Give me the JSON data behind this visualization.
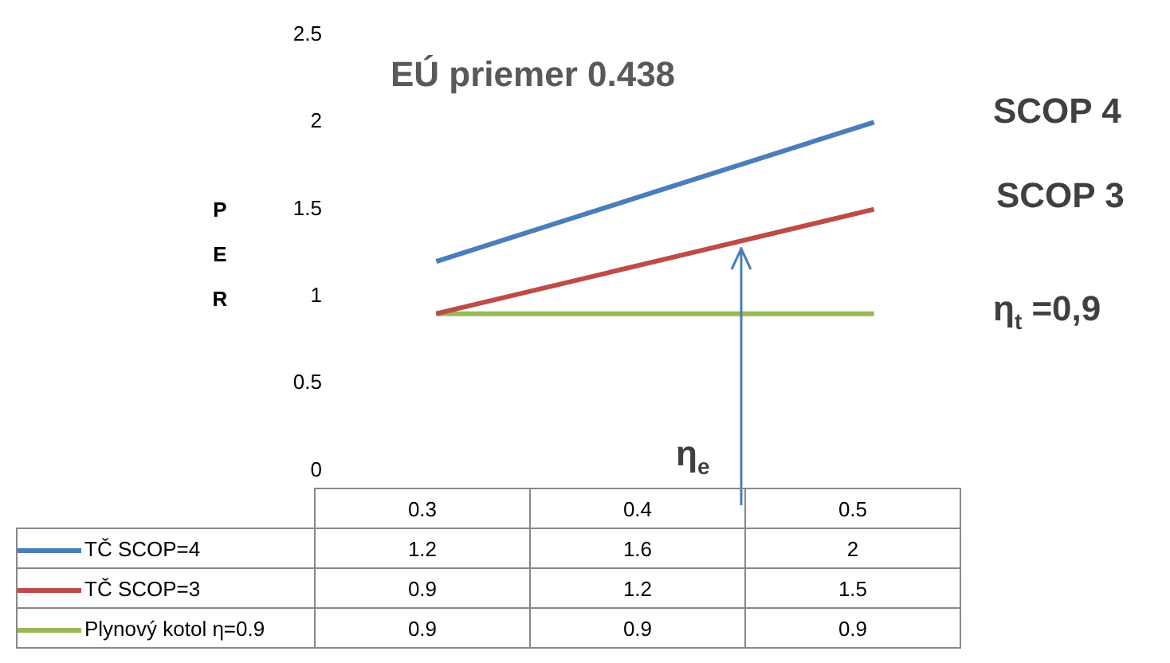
{
  "chart_data": {
    "type": "line",
    "ylabel": "PER",
    "categories": [
      "0.3",
      "0.4",
      "0.5"
    ],
    "series": [
      {
        "name": "TČ SCOP=4",
        "color": "#4a7ebb",
        "values": [
          1.2,
          1.6,
          2
        ]
      },
      {
        "name": "TČ SCOP=3",
        "color": "#be4b48",
        "values": [
          0.9,
          1.2,
          1.5
        ]
      },
      {
        "name": "Plynový kotol η=0.9",
        "color": "#98b954",
        "values": [
          0.9,
          0.9,
          0.9
        ]
      }
    ],
    "ylim": [
      0,
      2.5
    ],
    "yticks": [
      0,
      0.5,
      1,
      1.5,
      2,
      2.5
    ],
    "grid": false,
    "legend": "bottom",
    "data_labels": true,
    "marker": "none",
    "annotations": [
      "EÚ priemer 0.438",
      "SCOP 4",
      "SCOP 3",
      "η$_{t}$ =0,9",
      "η$_{e}$"
    ]
  }
}
